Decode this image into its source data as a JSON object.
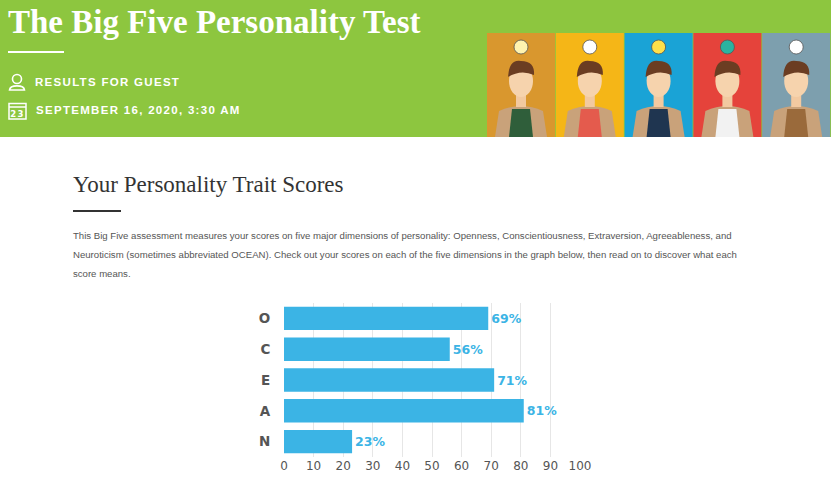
{
  "header": {
    "title": "The Big Five Personality Test",
    "results_for": "RESULTS FOR GUEST",
    "calendar_icon": "23",
    "date": "SEPTEMBER 16, 2020, 3:30 AM"
  },
  "section": {
    "heading": "Your Personality Trait Scores",
    "description": "This Big Five assessment measures your scores on five major dimensions of personality: Openness, Conscientiousness, Extraversion, Agreeableness, and Neuroticism (sometimes abbreviated OCEAN). Check out your scores on each of the five dimensions in the graph below, then read on to discover what each score means."
  },
  "chart_data": {
    "type": "bar",
    "orientation": "horizontal",
    "categories": [
      "O",
      "C",
      "E",
      "A",
      "N"
    ],
    "values": [
      69,
      56,
      71,
      81,
      23
    ],
    "value_labels": [
      "69%",
      "56%",
      "71%",
      "81%",
      "23%"
    ],
    "data_labels": true,
    "color": "#3bb4e5",
    "xlim": [
      0,
      100
    ],
    "xticks": [
      0,
      10,
      20,
      30,
      40,
      50,
      60,
      70,
      80,
      90,
      100
    ],
    "grid": true
  }
}
